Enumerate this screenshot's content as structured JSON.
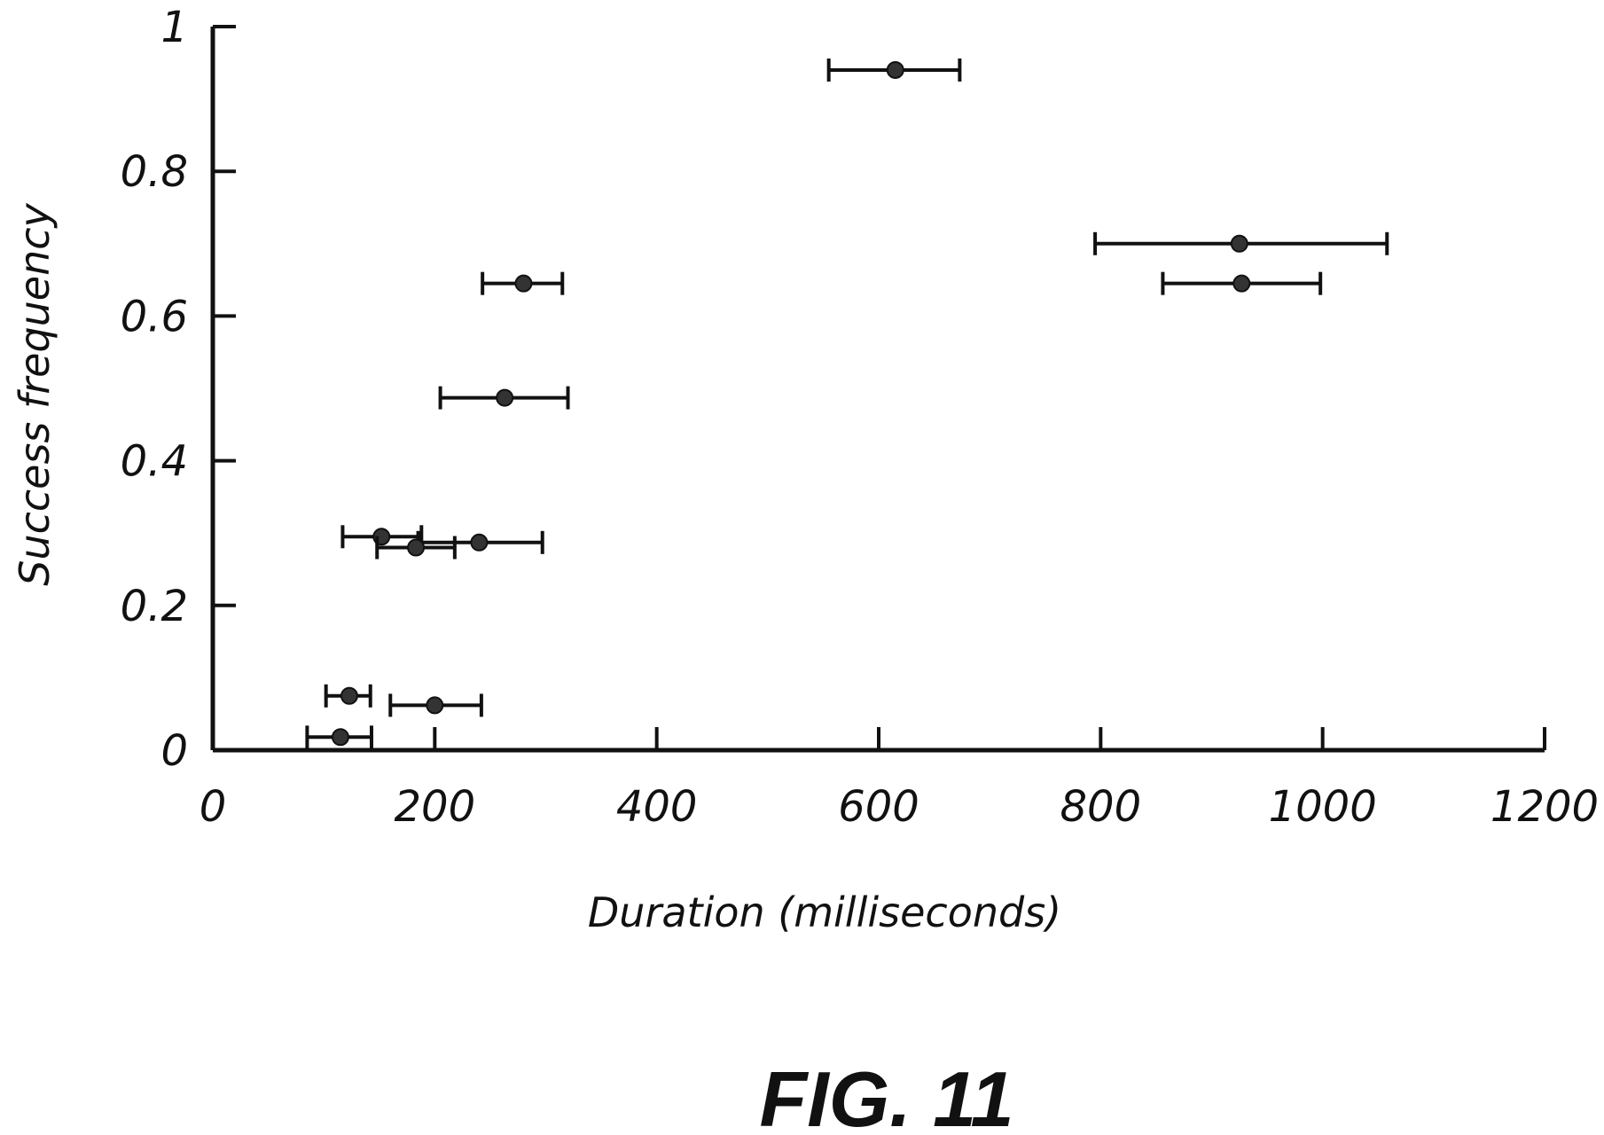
{
  "chart_data": {
    "type": "scatter",
    "title": "",
    "xlabel": "Duration (milliseconds)",
    "ylabel": "Success frequency",
    "xlim": [
      0,
      1200
    ],
    "ylim": [
      0,
      1
    ],
    "x_ticks": [
      0,
      200,
      400,
      600,
      800,
      1000,
      1200
    ],
    "x_tick_labels": [
      "0",
      "200",
      "400",
      "600",
      "800",
      "1000",
      "1200"
    ],
    "y_ticks": [
      0,
      0.2,
      0.4,
      0.6,
      0.8,
      1
    ],
    "y_tick_labels": [
      "0",
      "0.2",
      "0.4",
      "0.6",
      "0.8",
      "1"
    ],
    "grid": false,
    "legend": "none",
    "error_bars": "horizontal",
    "series": [
      {
        "points": [
          {
            "x": 615,
            "y": 0.94,
            "x_err_low": 555,
            "x_err_high": 673
          },
          {
            "x": 925,
            "y": 0.7,
            "x_err_low": 795,
            "x_err_high": 1058
          },
          {
            "x": 927,
            "y": 0.645,
            "x_err_low": 856,
            "x_err_high": 998
          },
          {
            "x": 280,
            "y": 0.645,
            "x_err_low": 243,
            "x_err_high": 315
          },
          {
            "x": 263,
            "y": 0.487,
            "x_err_low": 205,
            "x_err_high": 320
          },
          {
            "x": 240,
            "y": 0.287,
            "x_err_low": 185,
            "x_err_high": 297
          },
          {
            "x": 152,
            "y": 0.295,
            "x_err_low": 117,
            "x_err_high": 188
          },
          {
            "x": 183,
            "y": 0.28,
            "x_err_low": 148,
            "x_err_high": 218
          },
          {
            "x": 123,
            "y": 0.075,
            "x_err_low": 102,
            "x_err_high": 142
          },
          {
            "x": 200,
            "y": 0.062,
            "x_err_low": 160,
            "x_err_high": 242
          },
          {
            "x": 115,
            "y": 0.018,
            "x_err_low": 85,
            "x_err_high": 143
          }
        ]
      }
    ]
  },
  "figure_label": "FIG. 11",
  "colors": {
    "ink": "#111111",
    "marker": "#333333",
    "background": "#ffffff"
  }
}
